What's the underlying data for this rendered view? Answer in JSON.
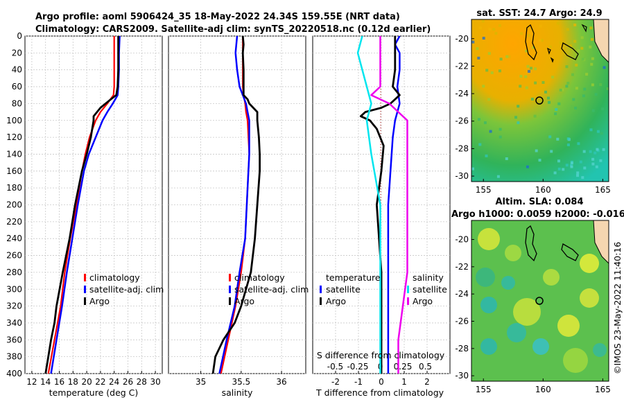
{
  "header": {
    "line1": "Argo profile: aoml 5906424_35 18-May-2022 24.34S 159.55E (NRT data)",
    "line2": "Climatology: CARS2009. Satellite-adj clim: synTS_20220518.nc (0.12d earlier)"
  },
  "colors": {
    "climatology": "#ff0000",
    "satellite": "#0000ff",
    "argo": "#000000",
    "sat_salinity": "#00e5ee",
    "argo_salinity": "#ee00ee"
  },
  "chart_data": [
    {
      "type": "line",
      "name": "temperature",
      "xlabel": "temperature (deg C)",
      "ylabel": "",
      "xlim": [
        11,
        31
      ],
      "ylim": [
        0,
        400
      ],
      "xticks": [
        12,
        14,
        16,
        18,
        20,
        22,
        24,
        26,
        28,
        30
      ],
      "yticks": [
        0,
        20,
        40,
        60,
        80,
        100,
        120,
        140,
        160,
        180,
        200,
        220,
        240,
        260,
        280,
        300,
        320,
        340,
        360,
        380,
        400
      ],
      "legend": [
        "climatology",
        "satellite-adj. clim",
        "Argo"
      ],
      "series": [
        {
          "name": "climatology",
          "depth": [
            0,
            20,
            40,
            60,
            70,
            80,
            90,
            100,
            120,
            140,
            160,
            200,
            240,
            280,
            320,
            360,
            400
          ],
          "values": [
            24.0,
            24.0,
            24.0,
            24.0,
            23.9,
            23.0,
            22.0,
            21.3,
            20.4,
            19.8,
            19.3,
            18.5,
            17.6,
            16.8,
            16.2,
            15.3,
            14.4
          ]
        },
        {
          "name": "satellite-adj. clim",
          "depth": [
            0,
            20,
            40,
            60,
            70,
            80,
            90,
            100,
            120,
            140,
            160,
            200,
            240,
            280,
            320,
            360,
            400
          ],
          "values": [
            24.8,
            24.7,
            24.7,
            24.6,
            24.5,
            23.8,
            23.0,
            22.3,
            21.3,
            20.3,
            19.6,
            18.7,
            17.9,
            17.1,
            16.4,
            15.6,
            14.8
          ]
        },
        {
          "name": "Argo",
          "depth": [
            0,
            20,
            40,
            60,
            70,
            75,
            85,
            95,
            100,
            110,
            120,
            140,
            160,
            200,
            240,
            280,
            320,
            340,
            360,
            380,
            400
          ],
          "values": [
            24.6,
            24.6,
            24.6,
            24.5,
            24.3,
            23.5,
            22.0,
            21.0,
            21.0,
            20.8,
            20.6,
            20.0,
            19.3,
            18.3,
            17.5,
            16.5,
            15.6,
            15.3,
            14.8,
            14.4,
            14.0
          ]
        }
      ]
    },
    {
      "type": "line",
      "name": "salinity",
      "xlabel": "salinity",
      "xlim": [
        34.6,
        36.3
      ],
      "ylim": [
        0,
        400
      ],
      "xticks": [
        35,
        35.5,
        36
      ],
      "legend": [
        "climatology",
        "satellite-adj. clim",
        "Argo"
      ],
      "series": [
        {
          "name": "climatology",
          "depth": [
            0,
            20,
            40,
            60,
            70,
            80,
            90,
            100,
            140,
            180,
            240,
            280,
            320,
            360,
            400
          ],
          "values": [
            35.52,
            35.52,
            35.52,
            35.52,
            35.53,
            35.55,
            35.56,
            35.58,
            35.6,
            35.58,
            35.55,
            35.5,
            35.43,
            35.34,
            35.25
          ]
        },
        {
          "name": "satellite-adj. clim",
          "depth": [
            0,
            20,
            40,
            60,
            70,
            80,
            90,
            100,
            140,
            180,
            240,
            280,
            320,
            360,
            400
          ],
          "values": [
            35.45,
            35.43,
            35.45,
            35.48,
            35.52,
            35.56,
            35.58,
            35.6,
            35.6,
            35.58,
            35.55,
            35.48,
            35.42,
            35.32,
            35.23
          ]
        },
        {
          "name": "Argo",
          "depth": [
            0,
            10,
            20,
            40,
            60,
            70,
            75,
            80,
            90,
            100,
            120,
            140,
            160,
            200,
            240,
            280,
            300,
            320,
            340,
            360,
            380,
            400
          ],
          "values": [
            35.52,
            35.53,
            35.52,
            35.53,
            35.53,
            35.53,
            35.58,
            35.6,
            35.7,
            35.7,
            35.72,
            35.73,
            35.73,
            35.7,
            35.67,
            35.62,
            35.56,
            35.5,
            35.42,
            35.28,
            35.18,
            35.15
          ]
        }
      ]
    },
    {
      "type": "line",
      "name": "difference",
      "xlabel": "T difference from climatology",
      "top_xlabel": "S difference from climatology",
      "xlim": [
        -3,
        3
      ],
      "ylim": [
        0,
        400
      ],
      "xticks": [
        -2,
        -1,
        0,
        1,
        2
      ],
      "top_ticks": [
        -0.5,
        -0.25,
        0,
        0.25,
        0.5
      ],
      "legend_temperature_title": "temperature",
      "legend_salinity_title": "salinity",
      "legend": [
        "satellite",
        "Argo",
        "satellite",
        "Argo"
      ],
      "series": [
        {
          "name": "temperature satellite",
          "depth": [
            0,
            10,
            20,
            40,
            60,
            80,
            100,
            120,
            160,
            200,
            280,
            360,
            400
          ],
          "values": [
            0.8,
            0.6,
            0.8,
            0.8,
            0.7,
            0.8,
            0.6,
            0.5,
            0.4,
            0.3,
            0.3,
            0.3,
            0.3
          ]
        },
        {
          "name": "temperature Argo",
          "depth": [
            0,
            20,
            40,
            60,
            70,
            80,
            85,
            90,
            95,
            100,
            110,
            130,
            160,
            200,
            280,
            360,
            400
          ],
          "values": [
            0.6,
            0.6,
            0.6,
            0.5,
            0.8,
            0.4,
            0.0,
            -0.7,
            -0.9,
            -0.5,
            -0.2,
            0.1,
            0.0,
            -0.2,
            0.0,
            0.0,
            0.0
          ]
        },
        {
          "name": "salinity satellite",
          "depth": [
            0,
            20,
            40,
            60,
            80,
            100,
            140,
            200,
            280,
            360,
            400
          ],
          "values": [
            -0.2,
            -0.25,
            -0.2,
            -0.15,
            -0.1,
            -0.15,
            -0.1,
            0.0,
            0.0,
            0.0,
            0.0
          ]
        },
        {
          "name": "salinity Argo",
          "depth": [
            0,
            20,
            40,
            60,
            70,
            80,
            90,
            100,
            140,
            200,
            280,
            360,
            400
          ],
          "values": [
            0.0,
            0.0,
            0.0,
            0.0,
            -0.1,
            0.1,
            0.2,
            0.3,
            0.3,
            0.3,
            0.3,
            0.2,
            0.2
          ]
        }
      ]
    },
    {
      "type": "heatmap",
      "name": "sst_map",
      "title": "sat. SST: 24.7 Argo: 24.9",
      "xticks": [
        155,
        160,
        165
      ],
      "yticks": [
        -20,
        -22,
        -24,
        -26,
        -28,
        -30
      ],
      "argo_position": [
        159.55,
        -24.34
      ]
    },
    {
      "type": "heatmap",
      "name": "sla_map",
      "title1": "Altim. SLA: 0.084",
      "title2": "Argo h1000: 0.0059 h2000: -0.016",
      "xticks": [
        155,
        160,
        165
      ],
      "yticks": [
        -20,
        -22,
        -24,
        -26,
        -28,
        -30
      ],
      "argo_position": [
        159.55,
        -24.34
      ]
    }
  ],
  "watermark": "©IMOS 23-May-2022 11:40:16"
}
